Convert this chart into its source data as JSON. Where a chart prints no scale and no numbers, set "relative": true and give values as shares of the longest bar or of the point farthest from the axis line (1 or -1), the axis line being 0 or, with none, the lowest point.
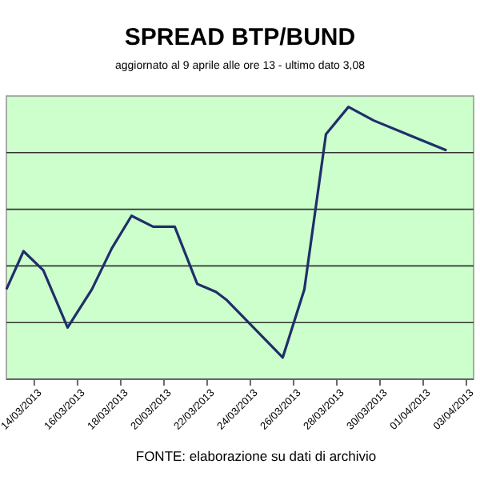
{
  "chart_data": {
    "type": "line",
    "title": "SPREAD  BTP/BUND",
    "subtitle": "aggiornato al 9 aprile alle ore 13 - ultimo dato 3,08",
    "annotations": [
      "FONTE: elaborazione su dati di archivio"
    ],
    "relative": true,
    "grid": "y",
    "marker": "none",
    "line_style": "solid",
    "x": [
      "2013-03-12T17:00",
      "2013-03-13T12:00",
      "2013-03-14T10:00",
      "2013-03-15T13:00",
      "2013-03-16T16:00",
      "2013-03-17T14:00",
      "2013-03-18T12:00",
      "2013-03-19T12:00",
      "2013-03-20T12:00",
      "2013-03-21T13:00",
      "2013-03-22T10:00",
      "2013-03-22T22:00",
      "2013-03-25T12:00",
      "2013-03-26T12:00",
      "2013-03-27T12:00",
      "2013-03-28T13:00",
      "2013-03-29T17:00",
      "2013-04-02T02:00"
    ],
    "series": [
      {
        "color": "#1f2f6a",
        "values": [
          0.33,
          0.47,
          0.4,
          0.19,
          0.33,
          0.48,
          0.6,
          0.56,
          0.56,
          0.35,
          0.32,
          0.29,
          0.08,
          0.33,
          0.9,
          1,
          0.95,
          0.84
        ]
      }
    ],
    "xlim": [
      "2013-03-12T17:00",
      "2013-04-03T08:00"
    ],
    "xticks": [
      {
        "value": "2013-03-14",
        "label": "14/03/2013"
      },
      {
        "value": "2013-03-16",
        "label": "16/03/2013"
      },
      {
        "value": "2013-03-18",
        "label": "18/03/2013"
      },
      {
        "value": "2013-03-20",
        "label": "20/03/2013"
      },
      {
        "value": "2013-03-22",
        "label": "22/03/2013"
      },
      {
        "value": "2013-03-24",
        "label": "24/03/2013"
      },
      {
        "value": "2013-03-26",
        "label": "26/03/2013"
      },
      {
        "value": "2013-03-28",
        "label": "28/03/2013"
      },
      {
        "value": "2013-03-30",
        "label": "30/03/2013"
      },
      {
        "value": "2013-04-01",
        "label": "01/04/2013"
      },
      {
        "value": "2013-04-03",
        "label": "03/04/2013"
      }
    ]
  }
}
